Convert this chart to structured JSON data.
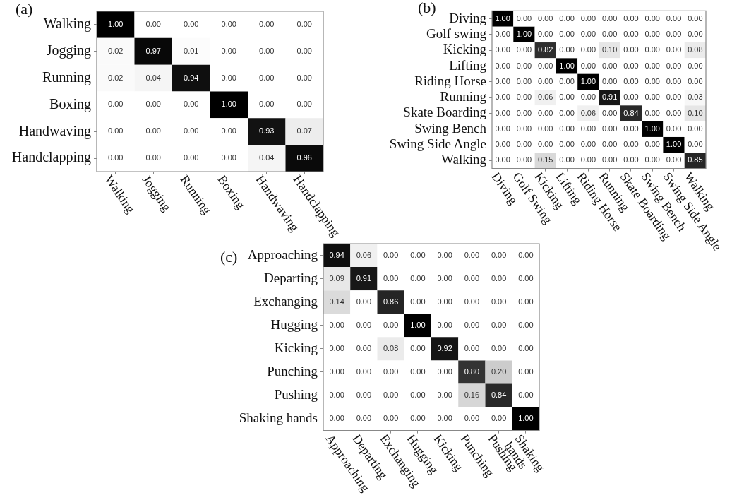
{
  "chart_data": [
    {
      "type": "heatmap",
      "title": "(a)",
      "categories": [
        "Walking",
        "Jogging",
        "Running",
        "Boxing",
        "Handwaving",
        "Handclapping"
      ],
      "y_categories": [
        "Walking",
        "Jogging",
        "Running",
        "Boxing",
        "Handwaving",
        "Handclapping"
      ],
      "cells": [
        [
          1.0,
          0,
          0,
          0,
          0,
          0
        ],
        [
          0.02,
          0.97,
          0.01,
          0,
          0,
          0
        ],
        [
          0.02,
          0.04,
          0.94,
          0,
          0,
          0
        ],
        [
          0,
          0,
          0,
          1.0,
          0,
          0
        ],
        [
          0,
          0,
          0,
          0,
          0.93,
          0.07
        ],
        [
          0,
          0,
          0,
          0,
          0.04,
          0.96
        ]
      ],
      "cell_labels": [
        [
          "1.00",
          "0.00",
          "0.00",
          "0.00",
          "0.00",
          "0.00"
        ],
        [
          "0.02",
          "0.97",
          "0.01",
          "0.00",
          "0.00",
          "0.00"
        ],
        [
          "0.02",
          "0.04",
          "0.94",
          "0.00",
          "0.00",
          "0.00"
        ],
        [
          "0.00",
          "0.00",
          "0.00",
          "1.00",
          "0.00",
          "0.00"
        ],
        [
          "0.00",
          "0.00",
          "0.00",
          "0.00",
          "0.93",
          "0.07"
        ],
        [
          "0.00",
          "0.00",
          "0.00",
          "0.00",
          "0.04",
          "0.96"
        ]
      ]
    },
    {
      "type": "heatmap",
      "title": "(b)",
      "categories": [
        "Diving",
        "Golf Swing",
        "Kicking",
        "Lifting",
        "Riding Horse",
        "Running",
        "Skate Boarding",
        "Swing Bench",
        "Swing Side Angle",
        "Walking"
      ],
      "y_categories": [
        "Diving",
        "Golf swing",
        "Kicking",
        "Lifting",
        "Riding Horse",
        "Running",
        "Skate Boarding",
        "Swing Bench",
        "Swing Side Angle",
        "Walking"
      ],
      "cells": [
        [
          1.0,
          0,
          0,
          0,
          0,
          0,
          0,
          0,
          0,
          0
        ],
        [
          0,
          1.0,
          0,
          0,
          0,
          0,
          0,
          0,
          0,
          0
        ],
        [
          0,
          0,
          0.82,
          0,
          0,
          0.1,
          0,
          0,
          0,
          0.08
        ],
        [
          0,
          0,
          0,
          1.0,
          0,
          0,
          0,
          0,
          0,
          0
        ],
        [
          0,
          0,
          0,
          0,
          1.0,
          0,
          0,
          0,
          0,
          0
        ],
        [
          0,
          0,
          0.06,
          0,
          0,
          0.91,
          0,
          0,
          0,
          0.03
        ],
        [
          0,
          0,
          0,
          0,
          0.06,
          0,
          0.84,
          0,
          0,
          0.1
        ],
        [
          0,
          0,
          0,
          0,
          0,
          0,
          0,
          1.0,
          0,
          0
        ],
        [
          0,
          0,
          0,
          0,
          0,
          0,
          0,
          0,
          1.0,
          0
        ],
        [
          0,
          0,
          0.15,
          0,
          0,
          0,
          0,
          0,
          0,
          0.85
        ]
      ],
      "cell_labels": [
        [
          "1.00",
          "0.00",
          "0.00",
          "0.00",
          "0.00",
          "0.00",
          "0.00",
          "0.00",
          "0.00",
          "0.00"
        ],
        [
          "0.00",
          "1.00",
          "0.00",
          "0.00",
          "0.00",
          "0.00",
          "0.00",
          "0.00",
          "0.00",
          "0.00"
        ],
        [
          "0.00",
          "0.00",
          "0.82",
          "0.00",
          "0.00",
          "0.10",
          "0.00",
          "0.00",
          "0.00",
          "0.08"
        ],
        [
          "0.00",
          "0.00",
          "0.00",
          "1.00",
          "0.00",
          "0.00",
          "0.00",
          "0.00",
          "0.00",
          "0.00"
        ],
        [
          "0.00",
          "0.00",
          "0.00",
          "0.00",
          "1.00",
          "0.00",
          "0.00",
          "0.00",
          "0.00",
          "0.00"
        ],
        [
          "0.00",
          "0.00",
          "0.06",
          "0.00",
          "0.00",
          "0.91",
          "0.00",
          "0.00",
          "0.00",
          "0.03"
        ],
        [
          "0.00",
          "0.00",
          "0.00",
          "0.00",
          "0.06",
          "0.00",
          "0.84",
          "0.00",
          "0.00",
          "0.10"
        ],
        [
          "0.00",
          "0.00",
          "0.00",
          "0.00",
          "0.00",
          "0.00",
          "0.00",
          "1.00",
          "0.00",
          "0.00"
        ],
        [
          "0.00",
          "0.00",
          "0.00",
          "0.00",
          "0.00",
          "0.00",
          "0.00",
          "0.00",
          "1.00",
          "0.00"
        ],
        [
          "0.00",
          "0.00",
          "0.15",
          "0.00",
          "0.00",
          "0.00",
          "0.00",
          "0.00",
          "0.00",
          "0.85"
        ]
      ]
    },
    {
      "type": "heatmap",
      "title": "(c)",
      "categories": [
        "Approaching",
        "Departing",
        "Exchanging",
        "Hugging",
        "Kicking",
        "Punching",
        "Pushing",
        "Shaking hands"
      ],
      "y_categories": [
        "Approaching",
        "Departing",
        "Exchanging",
        "Hugging",
        "Kicking",
        "Punching",
        "Pushing",
        "Shaking hands"
      ],
      "cells": [
        [
          0.94,
          0.06,
          0,
          0,
          0,
          0,
          0,
          0
        ],
        [
          0.09,
          0.91,
          0,
          0,
          0,
          0,
          0,
          0
        ],
        [
          0.14,
          0,
          0.86,
          0,
          0,
          0,
          0,
          0
        ],
        [
          0,
          0,
          0,
          1.0,
          0,
          0,
          0,
          0
        ],
        [
          0,
          0,
          0.08,
          0,
          0.92,
          0,
          0,
          0
        ],
        [
          0,
          0,
          0,
          0,
          0,
          0.8,
          0.2,
          0
        ],
        [
          0,
          0,
          0,
          0,
          0,
          0.16,
          0.84,
          0
        ],
        [
          0,
          0,
          0,
          0,
          0,
          0,
          0,
          1.0
        ]
      ],
      "cell_labels": [
        [
          "0.94",
          "0.06",
          "0.00",
          "0.00",
          "0.00",
          "0.00",
          "0.00",
          "0.00"
        ],
        [
          "0.09",
          "0.91",
          "0.00",
          "0.00",
          "0.00",
          "0.00",
          "0.00",
          "0.00"
        ],
        [
          "0.14",
          "0.00",
          "0.86",
          "0.00",
          "0.00",
          "0.00",
          "0.00",
          "0.00"
        ],
        [
          "0.00",
          "0.00",
          "0.00",
          "1.00",
          "0.00",
          "0.00",
          "0.00",
          "0.00"
        ],
        [
          "0.00",
          "0.00",
          "0.08",
          "0.00",
          "0.92",
          "0.00",
          "0.00",
          "0.00"
        ],
        [
          "0.00",
          "0.00",
          "0.00",
          "0.00",
          "0.00",
          "0.80",
          "0.20",
          "0.00"
        ],
        [
          "0.00",
          "0.00",
          "0.00",
          "0.00",
          "0.00",
          "0.16",
          "0.84",
          "0.00"
        ],
        [
          "0.00",
          "0.00",
          "0.00",
          "0.00",
          "0.00",
          "0.00",
          "0.00",
          "1.00"
        ]
      ]
    }
  ]
}
